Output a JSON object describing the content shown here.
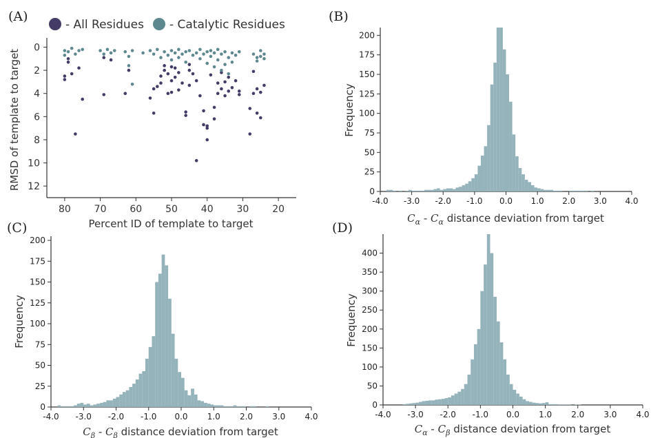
{
  "figure": {
    "panel_labels": [
      "(A)",
      "(B)",
      "(C)",
      "(D)"
    ]
  },
  "chart_data": [
    {
      "panel": "(A)",
      "type": "scatter",
      "xlabel": "Percent ID of template to target",
      "ylabel": "RMSD of template to target",
      "xlim": [
        85,
        15
      ],
      "ylim": [
        13,
        -0.8
      ],
      "x_reversed": true,
      "y_reversed": true,
      "xticks": [
        80,
        70,
        60,
        50,
        40,
        30,
        20
      ],
      "yticks": [
        0,
        2,
        4,
        6,
        8,
        10,
        12
      ],
      "legend_position": "top",
      "colors": {
        "all": "#443c66",
        "catalytic": "#5e8890"
      },
      "series": [
        {
          "name": "- All Residues",
          "points": [
            [
              80,
              2.8
            ],
            [
              80,
              2.5
            ],
            [
              79,
              1.0
            ],
            [
              79,
              1.3
            ],
            [
              78,
              2.3
            ],
            [
              77,
              7.5
            ],
            [
              76,
              1.8
            ],
            [
              75,
              4.5
            ],
            [
              69,
              4.1
            ],
            [
              69,
              0.9
            ],
            [
              67,
              1.1
            ],
            [
              63,
              4.0
            ],
            [
              62,
              2.0
            ],
            [
              56,
              4.4
            ],
            [
              55,
              5.7
            ],
            [
              55,
              3.6
            ],
            [
              54,
              3.4
            ],
            [
              53,
              2.5
            ],
            [
              53,
              3.1
            ],
            [
              52,
              1.6
            ],
            [
              52,
              2.0
            ],
            [
              51,
              2.3
            ],
            [
              51,
              4.0
            ],
            [
              50,
              1.7
            ],
            [
              50,
              2.9
            ],
            [
              50,
              3.9
            ],
            [
              49,
              1.8
            ],
            [
              49,
              2.6
            ],
            [
              48,
              3.7
            ],
            [
              48,
              2.2
            ],
            [
              47,
              3.1
            ],
            [
              46,
              5.6
            ],
            [
              46,
              5.9
            ],
            [
              45,
              1.5
            ],
            [
              45,
              2.0
            ],
            [
              45,
              3.3
            ],
            [
              44,
              2.3
            ],
            [
              43,
              9.8
            ],
            [
              43,
              2.9
            ],
            [
              42,
              4.2
            ],
            [
              41,
              6.7
            ],
            [
              41,
              5.5
            ],
            [
              40,
              8.0
            ],
            [
              40,
              7.0
            ],
            [
              40,
              6.8
            ],
            [
              39,
              2.4
            ],
            [
              38,
              5.2
            ],
            [
              38,
              6.2
            ],
            [
              37,
              3.1
            ],
            [
              37,
              4.0
            ],
            [
              36,
              2.2
            ],
            [
              36,
              3.6
            ],
            [
              35,
              4.2
            ],
            [
              35,
              3.0
            ],
            [
              34,
              2.6
            ],
            [
              34,
              3.8
            ],
            [
              33,
              3.5
            ],
            [
              32,
              2.9
            ],
            [
              31,
              3.8
            ],
            [
              31,
              4.1
            ],
            [
              28,
              7.5
            ],
            [
              28,
              5.3
            ],
            [
              27,
              4.0
            ],
            [
              27,
              2.1
            ],
            [
              26,
              3.6
            ],
            [
              26,
              5.7
            ],
            [
              25,
              3.9
            ],
            [
              25,
              6.1
            ],
            [
              24,
              3.3
            ]
          ]
        },
        {
          "name": "- Catalytic Residues",
          "points": [
            [
              80,
              0.3
            ],
            [
              80,
              0.7
            ],
            [
              79,
              0.4
            ],
            [
              78,
              0.1
            ],
            [
              77,
              0.6
            ],
            [
              76,
              0.3
            ],
            [
              75,
              0.2
            ],
            [
              70,
              0.3
            ],
            [
              69,
              0.6
            ],
            [
              68,
              0.2
            ],
            [
              67,
              0.5
            ],
            [
              66,
              0.3
            ],
            [
              63,
              0.4
            ],
            [
              62,
              0.8
            ],
            [
              62,
              1.6
            ],
            [
              61,
              0.3
            ],
            [
              61,
              3.2
            ],
            [
              58,
              0.5
            ],
            [
              56,
              0.3
            ],
            [
              55,
              0.6
            ],
            [
              54,
              0.2
            ],
            [
              53,
              0.9
            ],
            [
              52,
              0.4
            ],
            [
              51,
              0.7
            ],
            [
              50,
              0.3
            ],
            [
              50,
              1.1
            ],
            [
              49,
              0.5
            ],
            [
              48,
              0.2
            ],
            [
              48,
              0.9
            ],
            [
              47,
              0.6
            ],
            [
              46,
              0.4
            ],
            [
              46,
              1.3
            ],
            [
              45,
              0.3
            ],
            [
              44,
              0.7
            ],
            [
              43,
              0.5
            ],
            [
              42,
              0.2
            ],
            [
              42,
              1.0
            ],
            [
              41,
              0.6
            ],
            [
              40,
              0.4
            ],
            [
              40,
              1.4
            ],
            [
              39,
              0.3
            ],
            [
              39,
              0.8
            ],
            [
              38,
              0.5
            ],
            [
              38,
              1.7
            ],
            [
              37,
              0.2
            ],
            [
              37,
              1.1
            ],
            [
              36,
              0.6
            ],
            [
              36,
              2.0
            ],
            [
              35,
              0.4
            ],
            [
              35,
              1.5
            ],
            [
              34,
              0.9
            ],
            [
              34,
              2.3
            ],
            [
              33,
              0.5
            ],
            [
              33,
              1.3
            ],
            [
              32,
              0.7
            ],
            [
              31,
              0.4
            ],
            [
              27,
              0.6
            ],
            [
              26,
              0.9
            ],
            [
              26,
              1.2
            ],
            [
              25,
              0.3
            ],
            [
              25,
              0.8
            ],
            [
              24,
              0.6
            ],
            [
              24,
              1.0
            ]
          ]
        }
      ]
    },
    {
      "panel": "(B)",
      "type": "bar",
      "xlabel": "C_α - C_α distance deviation from target",
      "ylabel": "Frequency",
      "xlim": [
        -4.0,
        4.0
      ],
      "ylim": [
        0,
        210
      ],
      "xticks": [
        "-4.0",
        "-3.0",
        "-2.0",
        "-1.0",
        "0.0",
        "1.0",
        "2.0",
        "3.0",
        "4.0"
      ],
      "yticks": [
        0,
        25,
        50,
        75,
        100,
        125,
        150,
        175,
        200
      ],
      "bin_start": -3.8,
      "bin_width": 0.1,
      "color": "#94b3bb",
      "values": [
        2,
        2,
        1,
        0,
        1,
        0,
        1,
        2,
        1,
        1,
        1,
        1,
        2,
        2,
        2,
        3,
        4,
        2,
        3,
        4,
        4,
        3,
        5,
        6,
        8,
        10,
        13,
        17,
        22,
        33,
        46,
        58,
        85,
        137,
        165,
        210,
        210,
        182,
        150,
        115,
        73,
        45,
        30,
        22,
        15,
        12,
        8,
        5,
        4,
        3,
        2,
        2,
        2,
        1,
        1,
        1,
        0,
        0,
        1,
        1,
        1,
        1,
        1,
        1,
        0,
        1,
        0,
        0,
        0,
        0
      ]
    },
    {
      "panel": "(C)",
      "type": "bar",
      "xlabel": "C_β - C_β distance deviation from target",
      "ylabel": "Frequency",
      "xlim": [
        -4.0,
        4.0
      ],
      "ylim": [
        0,
        205
      ],
      "xticks": [
        "-4.0",
        "-3.0",
        "-2.0",
        "-1.0",
        "0.0",
        "1.0",
        "2.0",
        "3.0",
        "4.0"
      ],
      "yticks": [
        0,
        25,
        50,
        75,
        100,
        125,
        150,
        175,
        200
      ],
      "bin_start": -3.8,
      "bin_width": 0.1,
      "color": "#94b3bb",
      "values": [
        2,
        1,
        1,
        1,
        1,
        2,
        4,
        5,
        3,
        4,
        2,
        3,
        4,
        5,
        6,
        8,
        8,
        10,
        12,
        15,
        18,
        20,
        24,
        28,
        33,
        40,
        43,
        58,
        72,
        85,
        150,
        160,
        183,
        170,
        130,
        88,
        58,
        42,
        35,
        20,
        14,
        22,
        15,
        8,
        7,
        5,
        4,
        3,
        2,
        2,
        2,
        1,
        1,
        1,
        2,
        1,
        1,
        1,
        0,
        1,
        1,
        0,
        0,
        0,
        1,
        0,
        0,
        0
      ]
    },
    {
      "panel": "(D)",
      "type": "bar",
      "xlabel": "C_α - C_β distance deviation from target",
      "ylabel": "Frequency",
      "xlim": [
        -4.0,
        4.0
      ],
      "ylim": [
        0,
        450
      ],
      "xticks": [
        "-4.0",
        "-3.0",
        "-2.0",
        "-1.0",
        "0.0",
        "1.0",
        "2.0",
        "3.0",
        "4.0"
      ],
      "yticks": [
        0,
        50,
        100,
        150,
        200,
        250,
        300,
        350,
        400
      ],
      "bin_start": -3.4,
      "bin_width": 0.1,
      "color": "#94b3bb",
      "values": [
        2,
        3,
        4,
        5,
        6,
        8,
        10,
        11,
        12,
        12,
        14,
        15,
        16,
        18,
        20,
        25,
        30,
        35,
        42,
        55,
        80,
        120,
        160,
        200,
        300,
        370,
        450,
        400,
        285,
        220,
        165,
        120,
        80,
        55,
        40,
        30,
        22,
        15,
        10,
        8,
        6,
        5,
        4,
        5,
        7,
        2,
        2,
        2,
        1,
        1,
        1,
        1,
        0,
        1,
        1,
        0,
        0,
        0
      ]
    }
  ]
}
